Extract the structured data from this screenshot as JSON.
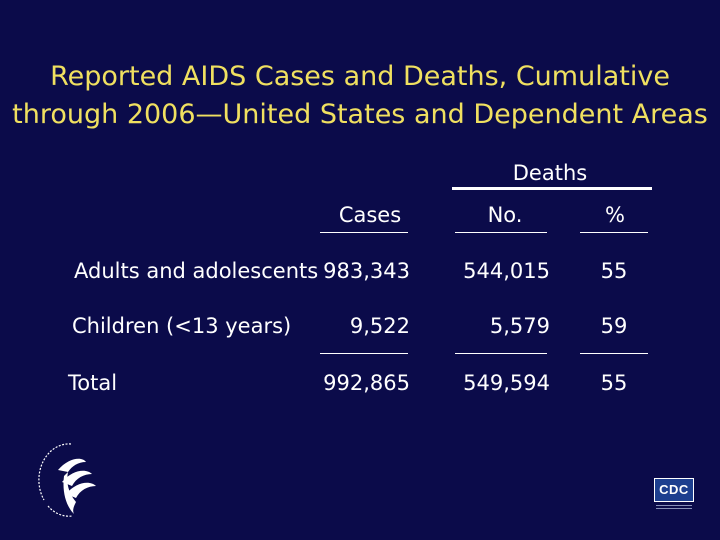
{
  "title": {
    "line1": "Reported AIDS Cases and Deaths, Cumulative",
    "line2": "through 2006—United States and Dependent Areas"
  },
  "table": {
    "group_header": "Deaths",
    "col_cases": "Cases",
    "col_deaths_no": "No.",
    "col_deaths_pct": "%",
    "rows": [
      {
        "label": "Adults and adolescents",
        "cases": "983,343",
        "deaths": "544,015",
        "pct": "55"
      },
      {
        "label": "Children (<13 years)",
        "cases": "9,522",
        "deaths": "5,579",
        "pct": "59"
      },
      {
        "label": "Total",
        "cases": "992,865",
        "deaths": "549,594",
        "pct": "55"
      }
    ]
  },
  "logos": {
    "hhs": "hhs-eagle-seal-icon",
    "cdc": "CDC"
  },
  "colors": {
    "background": "#0b0b4a",
    "title": "#f0e060",
    "text": "#ffffff",
    "cdc_blue": "#1d3f8f"
  }
}
